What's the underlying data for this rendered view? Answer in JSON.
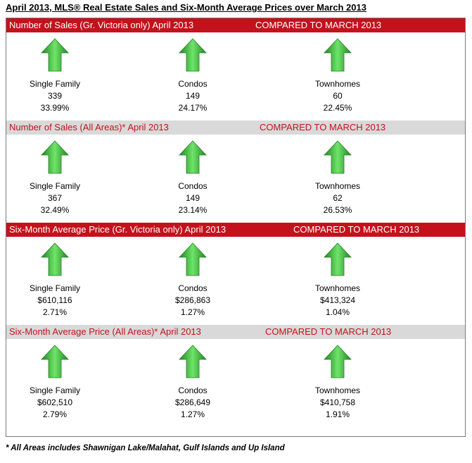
{
  "title": "April 2013, MLS® Real Estate Sales and Six-Month Average Prices over March 2013",
  "sections": [
    {
      "header_left": "Number of Sales (Gr. Victoria only) April 2013",
      "header_right": "COMPARED TO MARCH 2013",
      "items": [
        {
          "label": "Single Family",
          "value": "339",
          "change": "33.99%",
          "trend_icon": "up-arrow-icon"
        },
        {
          "label": "Condos",
          "value": "149",
          "change": "24.17%",
          "trend_icon": "up-arrow-icon"
        },
        {
          "label": "Townhomes",
          "value": "60",
          "change": "22.45%",
          "trend_icon": "up-arrow-icon"
        }
      ]
    },
    {
      "header_left": "Number of Sales (All Areas)* April  2013",
      "header_right": "COMPARED TO MARCH 2013",
      "items": [
        {
          "label": "Single Family",
          "value": "367",
          "change": "32.49%",
          "trend_icon": "up-arrow-icon"
        },
        {
          "label": "Condos",
          "value": "149",
          "change": "23.14%",
          "trend_icon": "up-arrow-icon"
        },
        {
          "label": "Townhomes",
          "value": "62",
          "change": "26.53%",
          "trend_icon": "up-arrow-icon"
        }
      ]
    },
    {
      "header_left": "Six-Month Average Price (Gr. Victoria only) April 2013",
      "header_right": "COMPARED TO MARCH 2013",
      "items": [
        {
          "label": "Single Family",
          "value": "$610,116",
          "change": "2.71%",
          "trend_icon": "up-arrow-icon"
        },
        {
          "label": "Condos",
          "value": "$286,863",
          "change": "1.27%",
          "trend_icon": "up-arrow-icon"
        },
        {
          "label": "Townhomes",
          "value": "$413,324",
          "change": "1.04%",
          "trend_icon": "up-arrow-icon"
        }
      ]
    },
    {
      "header_left": "Six-Month Average Price (All Areas)* April 2013",
      "header_right": "COMPARED TO MARCH 2013",
      "items": [
        {
          "label": "Single Family",
          "value": "$602,510",
          "change": "2.79%",
          "trend_icon": "up-arrow-icon"
        },
        {
          "label": "Condos",
          "value": "$286,649",
          "change": "1.27%",
          "trend_icon": "up-arrow-icon"
        },
        {
          "label": "Townhomes",
          "value": "$410,758",
          "change": "1.91%",
          "trend_icon": "up-arrow-icon"
        }
      ]
    }
  ],
  "footnote": "* All Areas includes Shawnigan Lake/Malahat, Gulf Islands and Up Island",
  "colors": {
    "header_red": "#c3121c",
    "header_gray": "#d9d9d9",
    "arrow_green_light": "#6fe36a",
    "arrow_green_dark": "#1f8a1f"
  }
}
